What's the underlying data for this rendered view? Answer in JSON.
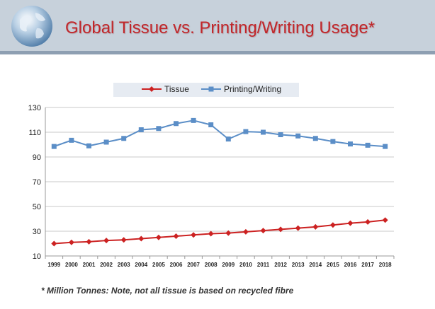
{
  "header": {
    "title": "Global Tissue vs. Printing/Writing Usage*"
  },
  "footnote": "* Million Tonnes: Note, not all tissue is based on recycled fibre",
  "colors": {
    "tissue": "#cc2222",
    "printing_writing": "#5b8ec7",
    "header_bg": "#c7d1db",
    "title": "#c1262a"
  },
  "chart_data": {
    "type": "line",
    "title": "",
    "xlabel": "",
    "ylabel": "",
    "x": [
      "1999",
      "2000",
      "2001",
      "2002",
      "2003",
      "2004",
      "2005",
      "2006",
      "2007",
      "2008",
      "2009",
      "2010",
      "2011",
      "2012",
      "2013",
      "2014",
      "2015",
      "2016",
      "2017",
      "2018"
    ],
    "ylim": [
      10,
      130
    ],
    "yticks": [
      10,
      30,
      50,
      70,
      90,
      110,
      130
    ],
    "grid": true,
    "legend": "top",
    "series": [
      {
        "name": "Tissue",
        "marker": "diamond",
        "values": [
          20,
          21,
          21.5,
          22.5,
          23,
          24,
          25,
          26,
          27,
          28,
          28.5,
          29.5,
          30.5,
          31.5,
          32.5,
          33.5,
          35,
          36.5,
          37.5,
          39
        ]
      },
      {
        "name": "Printing/Writing",
        "marker": "square",
        "values": [
          98.5,
          103.5,
          99,
          102,
          105,
          112,
          113,
          117,
          119.5,
          116,
          104.5,
          110.5,
          110,
          108,
          107,
          105,
          102.5,
          100.5,
          99.5,
          98.5
        ]
      }
    ]
  }
}
